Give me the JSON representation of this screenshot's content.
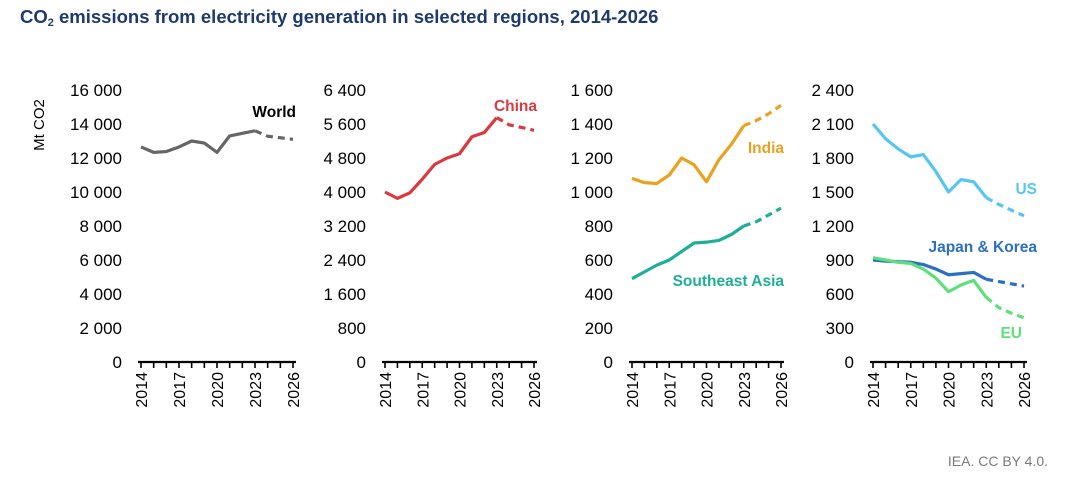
{
  "title": {
    "prefix": "CO",
    "subscript": "2",
    "suffix": " emissions from electricity generation in selected regions, 2014-2026"
  },
  "source": "IEA. CC BY 4.0.",
  "ylabel": "Mt CO2",
  "colors": {
    "world": "#666666",
    "china": "#d9393f",
    "india": "#e8a21f",
    "southeast_asia": "#1fae97",
    "us": "#55c6f2",
    "japan_korea": "#2c6fc2",
    "eu": "#5de07a",
    "axis": "#000000"
  },
  "chart_data": [
    {
      "type": "line",
      "name": "world-panel",
      "x": [
        2014,
        2015,
        2016,
        2017,
        2018,
        2019,
        2020,
        2021,
        2022,
        2023,
        2024,
        2025,
        2026
      ],
      "xticks": [
        "2014",
        "2017",
        "2020",
        "2023",
        "2026"
      ],
      "ylim": [
        0,
        16000
      ],
      "yticks": [
        "0",
        "2 000",
        "4 000",
        "6 000",
        "8 000",
        "10 000",
        "12 000",
        "14 000",
        "16 000"
      ],
      "series": [
        {
          "name": "World",
          "key": "world",
          "forecast_from": 2023,
          "values": [
            12650,
            12330,
            12380,
            12650,
            13000,
            12880,
            12330,
            13300,
            13450,
            13600,
            13280,
            13190,
            13100
          ]
        }
      ]
    },
    {
      "type": "line",
      "name": "china-panel",
      "x": [
        2014,
        2015,
        2016,
        2017,
        2018,
        2019,
        2020,
        2021,
        2022,
        2023,
        2024,
        2025,
        2026
      ],
      "xticks": [
        "2014",
        "2017",
        "2020",
        "2023",
        "2026"
      ],
      "ylim": [
        0,
        6400
      ],
      "yticks": [
        "0",
        "800",
        "1 600",
        "2 400",
        "3 200",
        "4 000",
        "4 800",
        "5 600",
        "6 400"
      ],
      "series": [
        {
          "name": "China",
          "key": "china",
          "forecast_from": 2023,
          "values": [
            4000,
            3850,
            3980,
            4300,
            4650,
            4800,
            4900,
            5300,
            5400,
            5750,
            5580,
            5520,
            5450
          ]
        }
      ]
    },
    {
      "type": "line",
      "name": "india-sea-panel",
      "x": [
        2014,
        2015,
        2016,
        2017,
        2018,
        2019,
        2020,
        2021,
        2022,
        2023,
        2024,
        2025,
        2026
      ],
      "xticks": [
        "2014",
        "2017",
        "2020",
        "2023",
        "2026"
      ],
      "ylim": [
        0,
        1600
      ],
      "yticks": [
        "0",
        "200",
        "400",
        "600",
        "800",
        "1 000",
        "1 200",
        "1 400",
        "1 600"
      ],
      "series": [
        {
          "name": "India",
          "key": "india",
          "forecast_from": 2023,
          "values": [
            1080,
            1055,
            1050,
            1100,
            1200,
            1160,
            1060,
            1190,
            1280,
            1390,
            1420,
            1460,
            1510
          ]
        },
        {
          "name": "Southeast Asia",
          "key": "southeast_asia",
          "forecast_from": 2023,
          "values": [
            490,
            530,
            570,
            600,
            650,
            700,
            705,
            715,
            750,
            800,
            825,
            865,
            905
          ]
        }
      ]
    },
    {
      "type": "line",
      "name": "us-jk-eu-panel",
      "x": [
        2014,
        2015,
        2016,
        2017,
        2018,
        2019,
        2020,
        2021,
        2022,
        2023,
        2024,
        2025,
        2026
      ],
      "xticks": [
        "2014",
        "2017",
        "2020",
        "2023",
        "2026"
      ],
      "ylim": [
        0,
        2400
      ],
      "yticks": [
        "0",
        "300",
        "600",
        "900",
        "1 200",
        "1 500",
        "1 800",
        "2 100",
        "2 400"
      ],
      "series": [
        {
          "name": "US",
          "key": "us",
          "forecast_from": 2023,
          "values": [
            2100,
            1970,
            1880,
            1810,
            1830,
            1680,
            1500,
            1610,
            1590,
            1450,
            1390,
            1340,
            1290
          ]
        },
        {
          "name": "Japan & Korea",
          "key": "japan_korea",
          "forecast_from": 2023,
          "values": [
            900,
            890,
            885,
            880,
            860,
            820,
            770,
            780,
            790,
            730,
            710,
            690,
            670
          ]
        },
        {
          "name": "EU",
          "key": "eu",
          "forecast_from": 2023,
          "values": [
            920,
            900,
            880,
            870,
            820,
            740,
            620,
            680,
            720,
            570,
            480,
            430,
            390
          ]
        }
      ]
    }
  ]
}
